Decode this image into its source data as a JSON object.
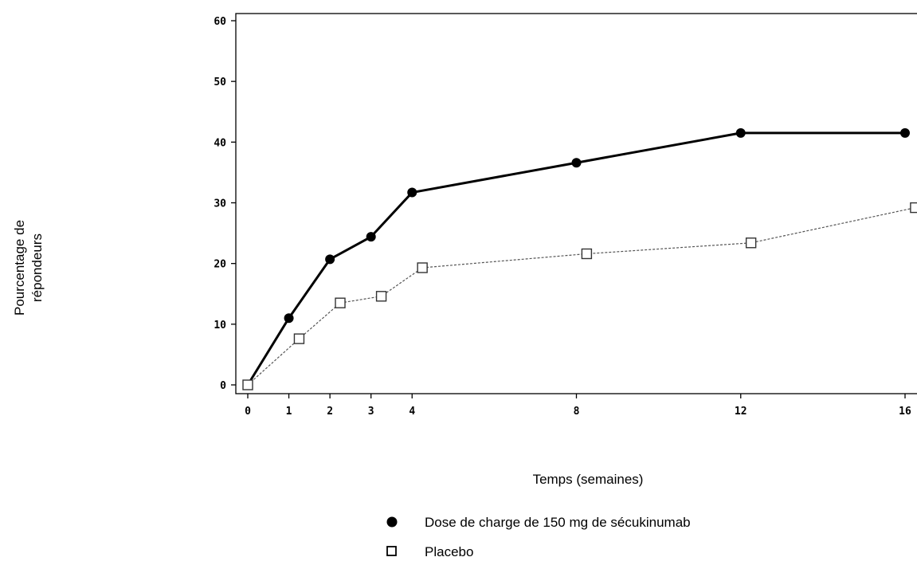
{
  "chart_data": {
    "type": "line",
    "title": "",
    "xlabel": "Temps (semaines)",
    "ylabel_lines": [
      "Pourcentage de",
      "répondeurs"
    ],
    "x_ticks": [
      0,
      1,
      2,
      3,
      4,
      8,
      12,
      16
    ],
    "y_ticks": [
      0,
      10,
      20,
      30,
      40,
      50,
      60
    ],
    "xlim": [
      -0.3,
      16.2
    ],
    "ylim": [
      -2,
      61
    ],
    "grid": false,
    "legend_position": "bottom",
    "series": [
      {
        "name": "Dose de charge de 150 mg de sécukinumab",
        "marker": "filled-circle",
        "line_style": "solid",
        "color": "#000000",
        "x": [
          0,
          1,
          2,
          3,
          4,
          8,
          12,
          16
        ],
        "y": [
          0,
          11.0,
          20.7,
          24.4,
          31.7,
          36.6,
          41.5,
          41.5
        ]
      },
      {
        "name": "Placebo",
        "marker": "open-square",
        "line_style": "dashed",
        "color": "#555555",
        "x": [
          0,
          1.25,
          2.25,
          3.25,
          4.25,
          8.25,
          12.25,
          16.25
        ],
        "y": [
          0,
          7.6,
          13.5,
          14.6,
          19.3,
          21.6,
          23.4,
          29.2
        ]
      }
    ]
  }
}
